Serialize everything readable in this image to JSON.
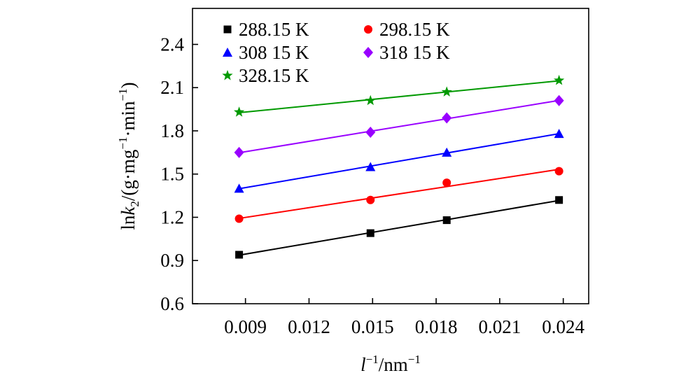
{
  "chart_data": {
    "type": "line",
    "title": "",
    "xlabel_base": "l",
    "xlabel_sup1": "−1",
    "xlabel_mid": "/nm",
    "xlabel_sup2": "−1",
    "ylabel_pre": "ln",
    "ylabel_k": "k",
    "ylabel_sub": "2",
    "ylabel_mid1": "/(g·mg",
    "ylabel_sup1": "−1",
    "ylabel_mid2": "·min",
    "ylabel_sup2": "−1",
    "ylabel_end": ")",
    "xlim": [
      0.0065,
      0.0252
    ],
    "ylim": [
      0.6,
      2.65
    ],
    "xticks": [
      0.009,
      0.012,
      0.015,
      0.018,
      0.021,
      0.024
    ],
    "xtick_labels": [
      "0.009",
      "0.012",
      "0.015",
      "0.018",
      "0.021",
      "0.024"
    ],
    "yticks": [
      0.6,
      0.9,
      1.2,
      1.5,
      1.8,
      2.1,
      2.4
    ],
    "ytick_labels": [
      "0.6",
      "0.9",
      "1.2",
      "1.5",
      "1.8",
      "2.1",
      "2.4"
    ],
    "x": [
      0.0087,
      0.0149,
      0.0185,
      0.0238
    ],
    "legend_position": "top-left",
    "series": [
      {
        "name": "288.15 K",
        "marker": "square",
        "color": "#000000",
        "values": [
          0.94,
          1.09,
          1.18,
          1.32
        ]
      },
      {
        "name": "298.15 K",
        "marker": "circle",
        "color": "#ff0000",
        "values": [
          1.19,
          1.32,
          1.44,
          1.52
        ]
      },
      {
        "name": "308 15 K",
        "marker": "triangle",
        "color": "#0000ff",
        "values": [
          1.4,
          1.55,
          1.65,
          1.78
        ]
      },
      {
        "name": "318 15 K",
        "marker": "diamond",
        "color": "#9900ff",
        "values": [
          1.65,
          1.79,
          1.89,
          2.01
        ]
      },
      {
        "name": "328.15 K",
        "marker": "star",
        "color": "#009900",
        "values": [
          1.93,
          2.01,
          2.07,
          2.15
        ]
      }
    ]
  }
}
